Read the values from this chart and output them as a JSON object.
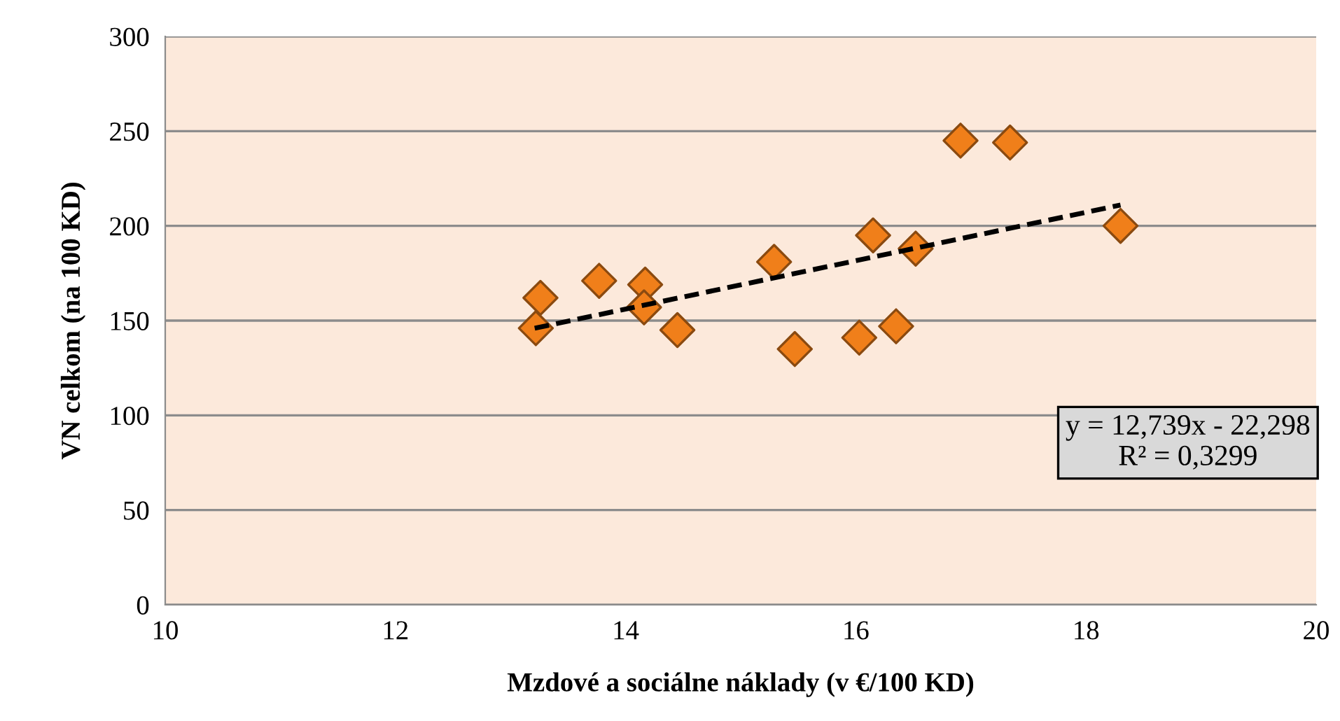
{
  "chart_data": {
    "type": "scatter",
    "xlabel": "Mzdové a sociálne náklady (v €/100 KD)",
    "ylabel": "VN celkom (na 100 KD)",
    "xlim": [
      10,
      20
    ],
    "xticks": [
      10,
      12,
      14,
      16,
      18,
      20
    ],
    "ylim": [
      0,
      300
    ],
    "yticks": [
      0,
      50,
      100,
      150,
      200,
      250,
      300
    ],
    "grid": "y",
    "marker": "diamond",
    "series": [
      {
        "color": "#f07f1a",
        "x": [
          13.22,
          13.26,
          13.77,
          14.17,
          14.16,
          14.45,
          15.29,
          15.47,
          16.03,
          16.15,
          16.35,
          16.52,
          16.91,
          17.34,
          18.3
        ],
        "values": [
          146,
          162,
          171,
          169,
          157,
          145,
          181,
          135,
          141,
          195,
          147,
          188,
          245,
          244,
          200
        ]
      },
      {
        "type": "line",
        "color": "#000000",
        "line_style": "dashed",
        "marker": "none",
        "x": [
          13.21,
          18.3
        ],
        "values": [
          146,
          211
        ]
      }
    ],
    "annotations": [
      "y = 12,739x - 22,298\nR² = 0,3299"
    ]
  }
}
